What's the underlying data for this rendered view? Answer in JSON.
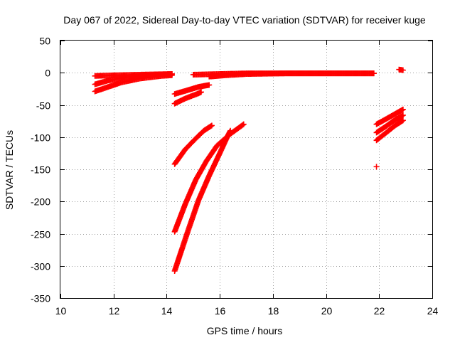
{
  "chart_data": {
    "type": "scatter",
    "title": "Day 067 of 2022, Sidereal Day-to-day VTEC variation (SDTVAR) for receiver kuge",
    "xlabel": "GPS time / hours",
    "ylabel": "SDTVAR / TECUs",
    "xlim": [
      10,
      24
    ],
    "ylim": [
      -350,
      50
    ],
    "xticks": [
      10,
      12,
      14,
      16,
      18,
      20,
      22,
      24
    ],
    "yticks": [
      -350,
      -300,
      -250,
      -200,
      -150,
      -100,
      -50,
      0,
      50
    ],
    "grid": true,
    "legend": "none",
    "marker": "plus",
    "series": [
      {
        "color": "#ff0000",
        "tracks": [
          [
            [
              11.3,
              -5
            ],
            [
              12.0,
              -4
            ],
            [
              13.0,
              -3
            ],
            [
              14.2,
              -2
            ]
          ],
          [
            [
              11.3,
              -18
            ],
            [
              11.8,
              -12
            ],
            [
              12.5,
              -7
            ],
            [
              13.3,
              -4
            ],
            [
              14.2,
              -2
            ]
          ],
          [
            [
              11.3,
              -29
            ],
            [
              11.8,
              -22
            ],
            [
              12.3,
              -15
            ],
            [
              13.0,
              -9
            ],
            [
              13.8,
              -5
            ],
            [
              14.2,
              -4
            ]
          ],
          [
            [
              14.3,
              -33
            ],
            [
              14.8,
              -27
            ],
            [
              15.2,
              -22
            ],
            [
              15.6,
              -19
            ]
          ],
          [
            [
              14.3,
              -48
            ],
            [
              14.7,
              -40
            ],
            [
              15.2,
              -32
            ],
            [
              15.3,
              -30
            ]
          ],
          [
            [
              14.3,
              -142
            ],
            [
              14.7,
              -119
            ],
            [
              15.1,
              -102
            ],
            [
              15.4,
              -90
            ],
            [
              15.7,
              -82
            ]
          ],
          [
            [
              14.3,
              -247
            ],
            [
              14.7,
              -204
            ],
            [
              15.1,
              -166
            ],
            [
              15.5,
              -137
            ],
            [
              15.9,
              -113
            ],
            [
              16.4,
              -95
            ],
            [
              16.9,
              -80
            ]
          ],
          [
            [
              14.3,
              -308
            ],
            [
              14.8,
              -246
            ],
            [
              15.2,
              -198
            ],
            [
              15.6,
              -160
            ],
            [
              16.0,
              -125
            ],
            [
              16.3,
              -98
            ],
            [
              16.4,
              -90
            ]
          ],
          [
            [
              15.0,
              -3
            ],
            [
              16.0,
              -2
            ],
            [
              17.0,
              -1
            ],
            [
              18.0,
              -1
            ],
            [
              19.0,
              -1
            ],
            [
              20.0,
              -1
            ],
            [
              21.0,
              -1
            ],
            [
              21.8,
              -1
            ]
          ],
          [
            [
              15.6,
              -6
            ],
            [
              16.2,
              -4
            ],
            [
              17.0,
              -2
            ],
            [
              18.5,
              -1
            ],
            [
              20.0,
              -1
            ],
            [
              21.8,
              -1
            ]
          ],
          [
            [
              21.9,
              -80
            ],
            [
              22.3,
              -71
            ],
            [
              22.6,
              -64
            ],
            [
              22.9,
              -57
            ]
          ],
          [
            [
              21.9,
              -93
            ],
            [
              22.3,
              -82
            ],
            [
              22.6,
              -73
            ],
            [
              22.9,
              -66
            ]
          ],
          [
            [
              21.9,
              -105
            ],
            [
              22.3,
              -92
            ],
            [
              22.6,
              -82
            ],
            [
              22.9,
              -74
            ]
          ],
          [
            [
              21.9,
              -146
            ]
          ],
          [
            [
              22.75,
              5
            ],
            [
              22.9,
              4
            ]
          ]
        ]
      }
    ]
  }
}
